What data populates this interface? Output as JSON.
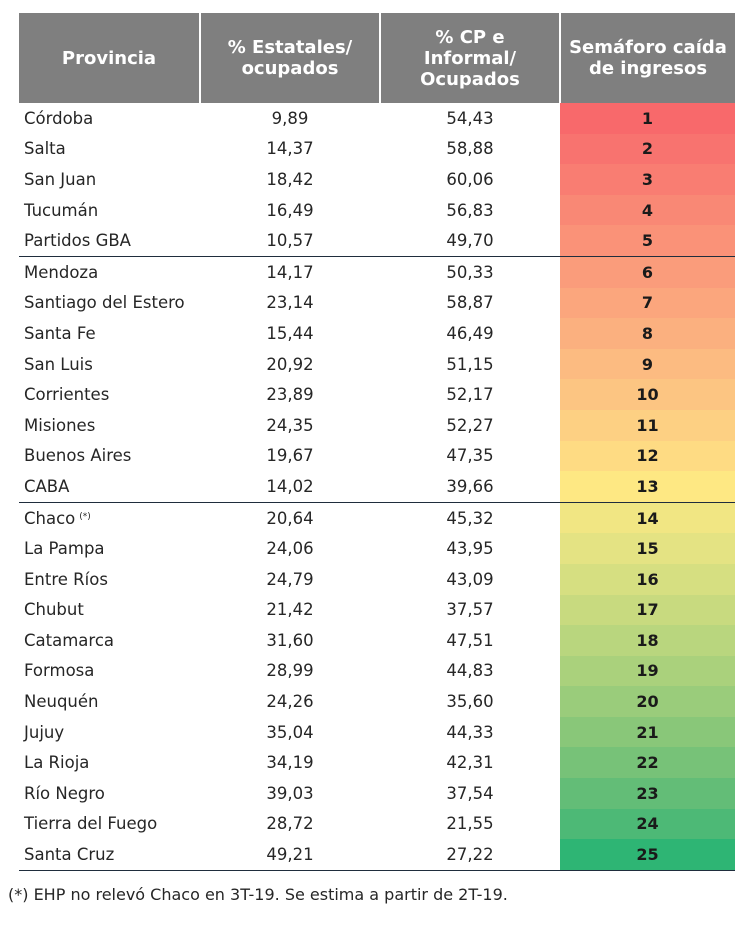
{
  "header": {
    "col1": "Provincia",
    "col2": [
      "% Estatales/",
      "ocupados"
    ],
    "col3": [
      "% CP e",
      "Informal/",
      "Ocupados"
    ],
    "col4": [
      "Semáforo caída",
      "de ingresos"
    ]
  },
  "rows": [
    {
      "provincia": "Córdoba",
      "estatales": "9,89",
      "cp_informal": "54,43",
      "semaforo": "1",
      "color": "#f8696b"
    },
    {
      "provincia": "Salta",
      "estatales": "14,37",
      "cp_informal": "58,88",
      "semaforo": "2",
      "color": "#f8736f"
    },
    {
      "provincia": "San Juan",
      "estatales": "18,42",
      "cp_informal": "60,06",
      "semaforo": "3",
      "color": "#f97d72"
    },
    {
      "provincia": "Tucumán",
      "estatales": "16,49",
      "cp_informal": "56,83",
      "semaforo": "4",
      "color": "#f98875"
    },
    {
      "provincia": "Partidos GBA",
      "estatales": "10,57",
      "cp_informal": "49,70",
      "semaforo": "5",
      "color": "#fa9278"
    },
    {
      "provincia": "Mendoza",
      "estatales": "14,17",
      "cp_informal": "50,33",
      "semaforo": "6",
      "color": "#fa9c7b"
    },
    {
      "provincia": "Santiago del Estero",
      "estatales": "23,14",
      "cp_informal": "58,87",
      "semaforo": "7",
      "color": "#fba67d"
    },
    {
      "provincia": "Santa Fe",
      "estatales": "15,44",
      "cp_informal": "46,49",
      "semaforo": "8",
      "color": "#fbb07f"
    },
    {
      "provincia": "San Luis",
      "estatales": "20,92",
      "cp_informal": "51,15",
      "semaforo": "9",
      "color": "#fcbb81"
    },
    {
      "provincia": "Corrientes",
      "estatales": "23,89",
      "cp_informal": "52,17",
      "semaforo": "10",
      "color": "#fcc582"
    },
    {
      "provincia": "Misiones",
      "estatales": "24,35",
      "cp_informal": "52,27",
      "semaforo": "11",
      "color": "#fdd083"
    },
    {
      "provincia": "Buenos Aires",
      "estatales": "19,67",
      "cp_informal": "47,35",
      "semaforo": "12",
      "color": "#fedb83"
    },
    {
      "provincia": "CABA",
      "estatales": "14,02",
      "cp_informal": "39,66",
      "semaforo": "13",
      "color": "#fee883"
    },
    {
      "provincia": "Chaco",
      "mark": "(*)",
      "estatales": "20,64",
      "cp_informal": "45,32",
      "semaforo": "14",
      "color": "#f1e683"
    },
    {
      "provincia": "La Pampa",
      "estatales": "24,06",
      "cp_informal": "43,95",
      "semaforo": "15",
      "color": "#e4e383"
    },
    {
      "provincia": "Entre Ríos",
      "estatales": "24,79",
      "cp_informal": "43,09",
      "semaforo": "16",
      "color": "#d6df81"
    },
    {
      "provincia": "Chubut",
      "estatales": "21,42",
      "cp_informal": "37,57",
      "semaforo": "17",
      "color": "#c8da7f"
    },
    {
      "provincia": "Catamarca",
      "estatales": "31,60",
      "cp_informal": "47,51",
      "semaforo": "18",
      "color": "#b9d67e"
    },
    {
      "provincia": "Formosa",
      "estatales": "28,99",
      "cp_informal": "44,83",
      "semaforo": "19",
      "color": "#aad17c"
    },
    {
      "provincia": "Neuquén",
      "estatales": "24,26",
      "cp_informal": "35,60",
      "semaforo": "20",
      "color": "#9acc7b"
    },
    {
      "provincia": "Jujuy",
      "estatales": "35,04",
      "cp_informal": "44,33",
      "semaforo": "21",
      "color": "#89c779"
    },
    {
      "provincia": "La Rioja",
      "estatales": "34,19",
      "cp_informal": "42,31",
      "semaforo": "22",
      "color": "#77c278"
    },
    {
      "provincia": "Río Negro",
      "estatales": "39,03",
      "cp_informal": "37,54",
      "semaforo": "23",
      "color": "#63bd77"
    },
    {
      "provincia": "Tierra del Fuego",
      "estatales": "28,72",
      "cp_informal": "21,55",
      "semaforo": "24",
      "color": "#4db976"
    },
    {
      "provincia": "Santa Cruz",
      "estatales": "49,21",
      "cp_informal": "27,22",
      "semaforo": "25",
      "color": "#2eb574"
    }
  ],
  "group_breaks": [
    5,
    13
  ],
  "footnote": "(*) EHP no relevó Chaco en 3T-19. Se estima a partir de 2T-19."
}
